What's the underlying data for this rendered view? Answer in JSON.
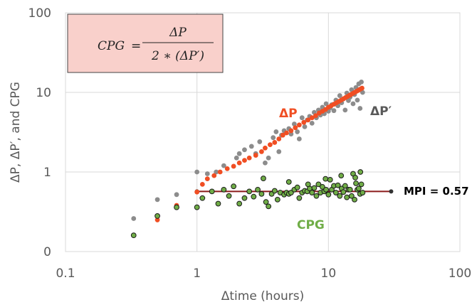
{
  "chart_data": {
    "type": "scatter",
    "xscale": "log",
    "yscale": "log",
    "xlim": [
      0.1,
      100
    ],
    "ylim": [
      0.1,
      100
    ],
    "xticks": [
      {
        "value": 0.1,
        "label": "0.1"
      },
      {
        "value": 1,
        "label": "1"
      },
      {
        "value": 10,
        "label": "10"
      },
      {
        "value": 100,
        "label": "100"
      }
    ],
    "yticks": [
      {
        "value": 0.1,
        "label": "0"
      },
      {
        "value": 1,
        "label": "1"
      },
      {
        "value": 10,
        "label": "10"
      },
      {
        "value": 100,
        "label": "100"
      }
    ],
    "xlabel": "Δtime (hours)",
    "ylabel": "ΔP, ΔP′, and CPG",
    "grid": true,
    "formula": {
      "lhs": "CPG",
      "eq": "=",
      "numerator": "ΔP",
      "denominator": "2 ∗ (ΔP′)"
    },
    "series": [
      {
        "name": "ΔP",
        "label": "ΔP",
        "color": "#f04e23",
        "points": [
          [
            0.5,
            0.25
          ],
          [
            0.7,
            0.38
          ],
          [
            1,
            0.56
          ],
          [
            1.1,
            0.7
          ],
          [
            1.2,
            0.82
          ],
          [
            1.35,
            0.9
          ],
          [
            1.5,
            1.0
          ],
          [
            1.7,
            1.1
          ],
          [
            1.9,
            1.18
          ],
          [
            2.1,
            1.3
          ],
          [
            2.3,
            1.4
          ],
          [
            2.5,
            1.5
          ],
          [
            2.8,
            1.62
          ],
          [
            3.1,
            1.8
          ],
          [
            3.3,
            2.0
          ],
          [
            3.6,
            2.2
          ],
          [
            3.9,
            2.35
          ],
          [
            4.2,
            2.6
          ],
          [
            4.5,
            2.9
          ],
          [
            4.8,
            3.1
          ],
          [
            5.2,
            3.3
          ],
          [
            5.6,
            3.6
          ],
          [
            6,
            3.9
          ],
          [
            6.5,
            4.2
          ],
          [
            7,
            4.5
          ],
          [
            7.5,
            4.8
          ],
          [
            8,
            5.1
          ],
          [
            8.5,
            5.5
          ],
          [
            9,
            5.8
          ],
          [
            9.5,
            6.1
          ],
          [
            10,
            6.5
          ],
          [
            10.5,
            6.8
          ],
          [
            11,
            7.1
          ],
          [
            11.5,
            7.4
          ],
          [
            12,
            7.7
          ],
          [
            12.5,
            8.0
          ],
          [
            13,
            8.3
          ],
          [
            13.5,
            8.6
          ],
          [
            14,
            8.9
          ],
          [
            14.5,
            9.2
          ],
          [
            15,
            9.5
          ],
          [
            15.5,
            9.8
          ],
          [
            16,
            10.1
          ],
          [
            16.5,
            10.4
          ],
          [
            17,
            10.7
          ],
          [
            17.5,
            11.0
          ],
          [
            18,
            11.3
          ]
        ]
      },
      {
        "name": "ΔP′",
        "label": "ΔP′",
        "color": "#8c8c8c",
        "points": [
          [
            0.33,
            0.26
          ],
          [
            0.5,
            0.45
          ],
          [
            0.7,
            0.52
          ],
          [
            1,
            1.0
          ],
          [
            1.2,
            0.95
          ],
          [
            1.4,
            1.0
          ],
          [
            1.6,
            1.2
          ],
          [
            2.0,
            1.5
          ],
          [
            2.1,
            1.7
          ],
          [
            2.3,
            1.9
          ],
          [
            2.6,
            2.1
          ],
          [
            2.8,
            1.7
          ],
          [
            3.0,
            2.4
          ],
          [
            3.3,
            1.3
          ],
          [
            3.5,
            1.5
          ],
          [
            3.8,
            2.7
          ],
          [
            4.0,
            3.2
          ],
          [
            4.2,
            1.8
          ],
          [
            4.4,
            2.9
          ],
          [
            4.6,
            3.3
          ],
          [
            5.0,
            3.5
          ],
          [
            5.2,
            3.0
          ],
          [
            5.5,
            4.0
          ],
          [
            5.8,
            3.2
          ],
          [
            6.0,
            2.6
          ],
          [
            6.3,
            4.8
          ],
          [
            6.6,
            3.7
          ],
          [
            6.9,
            4.5
          ],
          [
            7.2,
            5.0
          ],
          [
            7.5,
            4.1
          ],
          [
            7.8,
            5.6
          ],
          [
            8.1,
            4.8
          ],
          [
            8.4,
            6.0
          ],
          [
            8.7,
            5.2
          ],
          [
            9.0,
            6.5
          ],
          [
            9.3,
            5.4
          ],
          [
            9.6,
            7.2
          ],
          [
            10.0,
            5.8
          ],
          [
            10.3,
            6.4
          ],
          [
            10.6,
            7.0
          ],
          [
            11.0,
            5.9
          ],
          [
            11.4,
            8.0
          ],
          [
            11.8,
            6.8
          ],
          [
            12.2,
            9.1
          ],
          [
            12.6,
            7.4
          ],
          [
            13.0,
            8.3
          ],
          [
            13.4,
            6.0
          ],
          [
            13.8,
            9.8
          ],
          [
            14.2,
            7.9
          ],
          [
            14.6,
            8.7
          ],
          [
            15.0,
            10.8
          ],
          [
            15.4,
            7.2
          ],
          [
            15.8,
            9.4
          ],
          [
            16.2,
            11.5
          ],
          [
            16.6,
            8.0
          ],
          [
            17.0,
            12.8
          ],
          [
            17.4,
            6.3
          ],
          [
            17.8,
            13.5
          ],
          [
            18.2,
            10.0
          ]
        ]
      },
      {
        "name": "CPG",
        "label": "CPG",
        "color": "#70ad47",
        "points": [
          [
            0.33,
            0.16
          ],
          [
            0.5,
            0.28
          ],
          [
            0.7,
            0.36
          ],
          [
            1,
            0.36
          ],
          [
            1.1,
            0.47
          ],
          [
            1.3,
            0.57
          ],
          [
            1.45,
            0.4
          ],
          [
            1.6,
            0.6
          ],
          [
            1.75,
            0.5
          ],
          [
            1.9,
            0.66
          ],
          [
            2.1,
            0.4
          ],
          [
            2.3,
            0.47
          ],
          [
            2.5,
            0.57
          ],
          [
            2.7,
            0.49
          ],
          [
            2.9,
            0.6
          ],
          [
            3.1,
            0.53
          ],
          [
            3.2,
            0.83
          ],
          [
            3.35,
            0.42
          ],
          [
            3.5,
            0.37
          ],
          [
            3.7,
            0.53
          ],
          [
            3.9,
            0.58
          ],
          [
            4.1,
            0.45
          ],
          [
            4.3,
            0.55
          ],
          [
            4.6,
            0.52
          ],
          [
            4.8,
            0.55
          ],
          [
            5.0,
            0.53
          ],
          [
            5.2,
            0.55
          ],
          [
            5.5,
            0.6
          ],
          [
            5.8,
            0.64
          ],
          [
            6.0,
            0.47
          ],
          [
            6.3,
            0.55
          ],
          [
            6.6,
            0.58
          ],
          [
            6.9,
            0.57
          ],
          [
            7.2,
            0.62
          ],
          [
            7.5,
            0.55
          ],
          [
            7.8,
            0.63
          ],
          [
            8.1,
            0.5
          ],
          [
            8.4,
            0.7
          ],
          [
            8.7,
            0.55
          ],
          [
            9.0,
            0.65
          ],
          [
            9.3,
            0.57
          ],
          [
            9.6,
            0.6
          ],
          [
            10.0,
            0.52
          ],
          [
            10.3,
            0.8
          ],
          [
            10.6,
            0.6
          ],
          [
            11.0,
            0.67
          ],
          [
            11.4,
            0.55
          ],
          [
            11.8,
            0.68
          ],
          [
            12.2,
            0.5
          ],
          [
            12.6,
            0.62
          ],
          [
            13.0,
            0.56
          ],
          [
            13.4,
            0.67
          ],
          [
            13.8,
            0.48
          ],
          [
            14.2,
            0.6
          ],
          [
            14.6,
            0.6
          ],
          [
            15.0,
            0.5
          ],
          [
            15.4,
            0.95
          ],
          [
            15.8,
            0.45
          ],
          [
            16.2,
            0.72
          ],
          [
            16.6,
            0.6
          ],
          [
            17.0,
            0.62
          ],
          [
            17.4,
            0.53
          ],
          [
            17.8,
            0.7
          ],
          [
            18.2,
            0.55
          ],
          [
            5.0,
            0.75
          ],
          [
            7.0,
            0.7
          ],
          [
            9.5,
            0.82
          ],
          [
            12.5,
            0.9
          ],
          [
            16.0,
            0.85
          ],
          [
            17.5,
            1.0
          ]
        ]
      }
    ],
    "mpi_line": {
      "x_start": 1,
      "x_end": 30,
      "y": 0.57,
      "label": "MPI = 0.57",
      "color": "#8b1a1a"
    }
  }
}
